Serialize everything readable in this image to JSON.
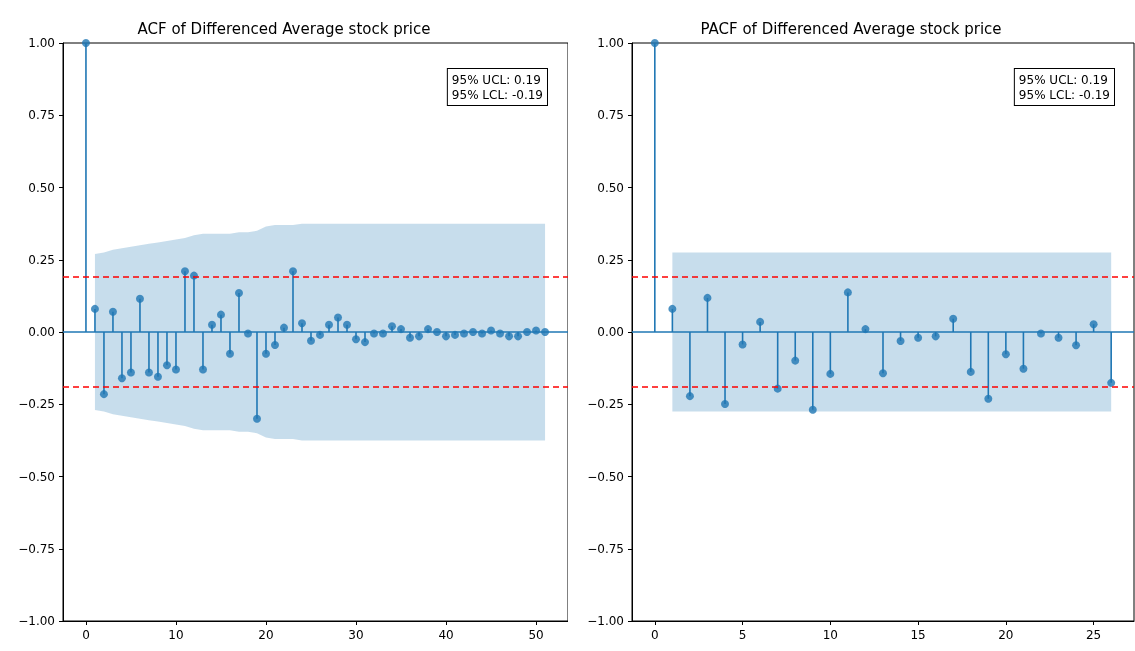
{
  "chart_data": [
    {
      "type": "lollipop",
      "title": "ACF of Differenced Average stock price",
      "marker": "circle",
      "xlim": [
        -2.55,
        53.55
      ],
      "xticks": [
        0,
        10,
        20,
        30,
        40,
        50
      ],
      "ylim": [
        -1,
        1
      ],
      "yticks": [
        {
          "value": -1,
          "label": "−1.00"
        },
        {
          "value": -0.75,
          "label": "−0.75"
        },
        {
          "value": -0.5,
          "label": "−0.50"
        },
        {
          "value": -0.25,
          "label": "−0.25"
        },
        {
          "value": 0,
          "label": "0.00"
        },
        {
          "value": 0.25,
          "label": "0.25"
        },
        {
          "value": 0.5,
          "label": "0.50"
        },
        {
          "value": 0.75,
          "label": "0.75"
        },
        {
          "value": 1,
          "label": "1.00"
        }
      ],
      "series": [
        {
          "color": "#1f77b4",
          "x": [
            0,
            1,
            2,
            3,
            4,
            5,
            6,
            7,
            8,
            9,
            10,
            11,
            12,
            13,
            14,
            15,
            16,
            17,
            18,
            19,
            20,
            21,
            22,
            23,
            24,
            25,
            26,
            27,
            28,
            29,
            30,
            31,
            32,
            33,
            34,
            35,
            36,
            37,
            38,
            39,
            40,
            41,
            42,
            43,
            44,
            45,
            46,
            47,
            48,
            49,
            50,
            51
          ],
          "values": [
            1,
            0.08,
            -0.215,
            0.07,
            -0.16,
            -0.14,
            0.115,
            -0.14,
            -0.155,
            -0.115,
            -0.13,
            0.21,
            0.195,
            -0.13,
            0.025,
            0.06,
            -0.075,
            0.135,
            -0.005,
            -0.3,
            -0.075,
            -0.045,
            0.015,
            0.21,
            0.03,
            -0.03,
            -0.01,
            0.025,
            0.05,
            0.025,
            -0.025,
            -0.035,
            -0.005,
            -0.005,
            0.02,
            0.01,
            -0.02,
            -0.015,
            0.01,
            0,
            -0.015,
            -0.01,
            -0.005,
            0,
            -0.005,
            0.005,
            -0.005,
            -0.015,
            -0.015,
            0,
            0.005,
            0
          ],
          "upper": [
            null,
            0.27,
            0.275,
            0.285,
            0.29,
            0.295,
            0.3,
            0.305,
            0.31,
            0.315,
            0.32,
            0.325,
            0.335,
            0.34,
            0.34,
            0.34,
            0.34,
            0.345,
            0.345,
            0.35,
            0.365,
            0.37,
            0.37,
            0.37,
            0.375,
            0.375,
            0.375,
            0.375,
            0.375,
            0.375,
            0.375,
            0.375,
            0.375,
            0.375,
            0.375,
            0.375,
            0.375,
            0.375,
            0.375,
            0.375,
            0.375,
            0.375,
            0.375,
            0.375,
            0.375,
            0.375,
            0.375,
            0.375,
            0.375,
            0.375,
            0.375,
            0.375
          ],
          "lower": [
            null,
            -0.27,
            -0.275,
            -0.285,
            -0.29,
            -0.295,
            -0.3,
            -0.305,
            -0.31,
            -0.315,
            -0.32,
            -0.325,
            -0.335,
            -0.34,
            -0.34,
            -0.34,
            -0.34,
            -0.345,
            -0.345,
            -0.35,
            -0.365,
            -0.37,
            -0.37,
            -0.37,
            -0.375,
            -0.375,
            -0.375,
            -0.375,
            -0.375,
            -0.375,
            -0.375,
            -0.375,
            -0.375,
            -0.375,
            -0.375,
            -0.375,
            -0.375,
            -0.375,
            -0.375,
            -0.375,
            -0.375,
            -0.375,
            -0.375,
            -0.375,
            -0.375,
            -0.375,
            -0.375,
            -0.375,
            -0.375,
            -0.375,
            -0.375,
            -0.375
          ]
        }
      ],
      "ref_lines": [
        {
          "axis": "y",
          "value": 0,
          "color": "#1f77b4",
          "line_style": "solid"
        },
        {
          "axis": "y",
          "value": 0.19,
          "color": "#ff0000",
          "line_style": "dashed"
        },
        {
          "axis": "y",
          "value": -0.19,
          "color": "#ff0000",
          "line_style": "dashed"
        }
      ],
      "annotations": [
        "95% UCL: 0.19",
        "95% LCL: -0.19"
      ]
    },
    {
      "type": "lollipop",
      "title": "PACF of Differenced Average stock price",
      "marker": "circle",
      "xlim": [
        -1.3,
        27.3
      ],
      "xticks": [
        0,
        5,
        10,
        15,
        20,
        25
      ],
      "ylim": [
        -1,
        1
      ],
      "yticks": [
        {
          "value": -1,
          "label": "−1.00"
        },
        {
          "value": -0.75,
          "label": "−0.75"
        },
        {
          "value": -0.5,
          "label": "−0.50"
        },
        {
          "value": -0.25,
          "label": "−0.25"
        },
        {
          "value": 0,
          "label": "0.00"
        },
        {
          "value": 0.25,
          "label": "0.25"
        },
        {
          "value": 0.5,
          "label": "0.50"
        },
        {
          "value": 0.75,
          "label": "0.75"
        },
        {
          "value": 1,
          "label": "1.00"
        }
      ],
      "series": [
        {
          "color": "#1f77b4",
          "x": [
            0,
            1,
            2,
            3,
            4,
            5,
            6,
            7,
            8,
            9,
            10,
            11,
            12,
            13,
            14,
            15,
            16,
            17,
            18,
            19,
            20,
            21,
            22,
            23,
            24,
            25,
            26
          ],
          "values": [
            1,
            0.08,
            -0.222,
            0.118,
            -0.249,
            -0.043,
            0.035,
            -0.196,
            -0.099,
            -0.269,
            -0.145,
            0.137,
            0.01,
            -0.143,
            -0.031,
            -0.02,
            -0.015,
            0.046,
            -0.138,
            -0.231,
            -0.077,
            -0.127,
            -0.005,
            -0.02,
            -0.046,
            0.027,
            -0.176
          ],
          "upper": [
            null,
            0.275,
            0.275,
            0.275,
            0.275,
            0.275,
            0.275,
            0.275,
            0.275,
            0.275,
            0.275,
            0.275,
            0.275,
            0.275,
            0.275,
            0.275,
            0.275,
            0.275,
            0.275,
            0.275,
            0.275,
            0.275,
            0.275,
            0.275,
            0.275,
            0.275,
            0.275
          ],
          "lower": [
            null,
            -0.275,
            -0.275,
            -0.275,
            -0.275,
            -0.275,
            -0.275,
            -0.275,
            -0.275,
            -0.275,
            -0.275,
            -0.275,
            -0.275,
            -0.275,
            -0.275,
            -0.275,
            -0.275,
            -0.275,
            -0.275,
            -0.275,
            -0.275,
            -0.275,
            -0.275,
            -0.275,
            -0.275,
            -0.275,
            -0.275
          ]
        }
      ],
      "ref_lines": [
        {
          "axis": "y",
          "value": 0,
          "color": "#1f77b4",
          "line_style": "solid"
        },
        {
          "axis": "y",
          "value": 0.19,
          "color": "#ff0000",
          "line_style": "dashed"
        },
        {
          "axis": "y",
          "value": -0.19,
          "color": "#ff0000",
          "line_style": "dashed"
        }
      ],
      "annotations": [
        "95% UCL: 0.19",
        "95% LCL: -0.19"
      ]
    }
  ]
}
